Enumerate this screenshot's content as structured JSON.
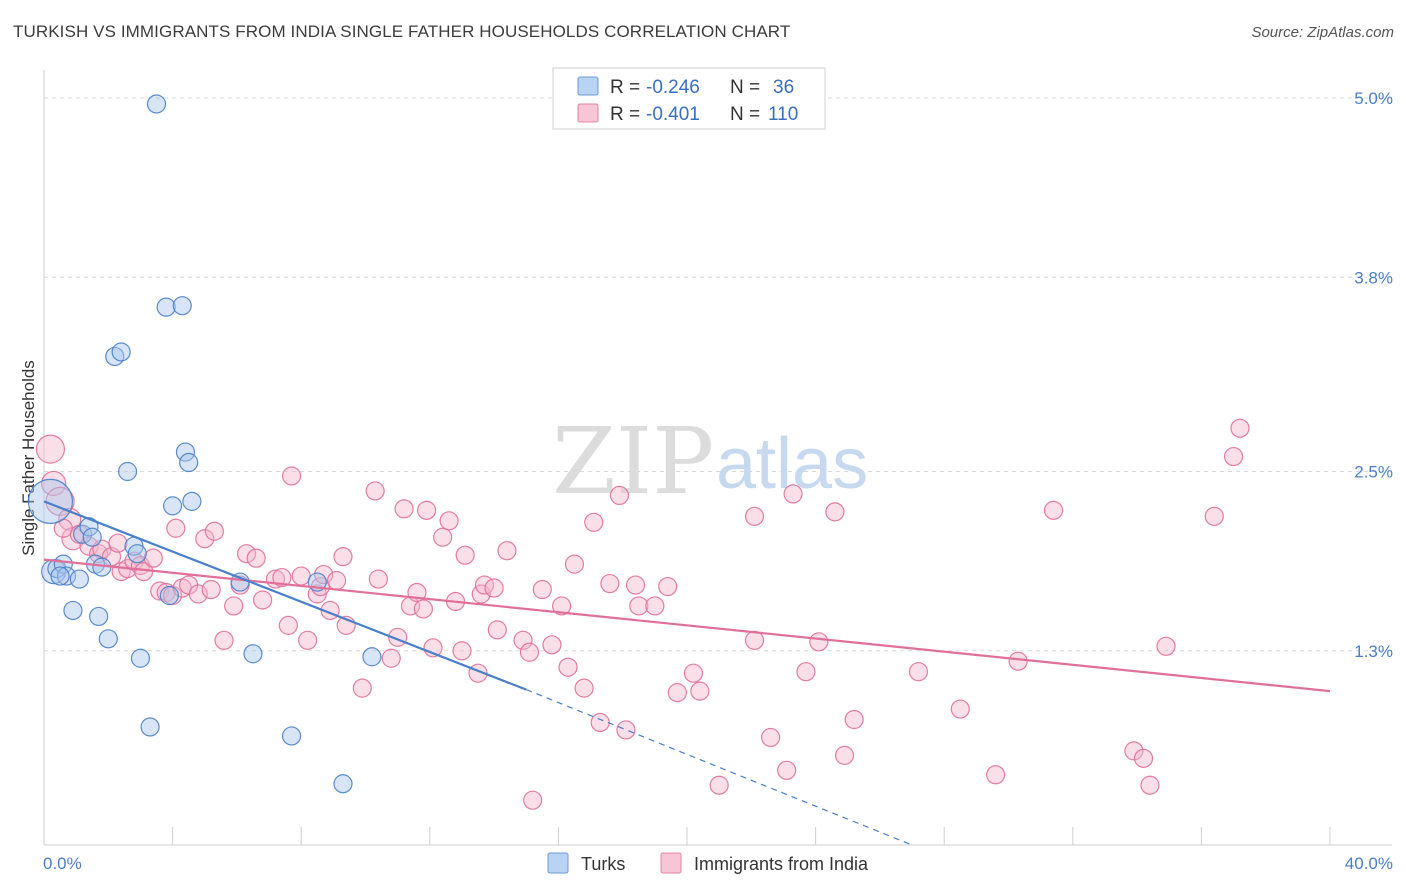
{
  "title": "TURKISH VS IMMIGRANTS FROM INDIA SINGLE FATHER HOUSEHOLDS CORRELATION CHART",
  "source": "Source: ZipAtlas.com",
  "watermark": {
    "zip": "ZIP",
    "atlas": "atlas"
  },
  "colors": {
    "blue": "#4a7fc9",
    "blue_fill": "#a8c6ec",
    "pink": "#e0709a",
    "pink_fill": "#f4b6cb",
    "grid": "#d9d9d9"
  },
  "legend": {
    "r_label": "R =",
    "n_label": "N =",
    "rows": [
      {
        "r": "-0.246",
        "n": "36"
      },
      {
        "r": "-0.401",
        "n": "110"
      }
    ]
  },
  "chart_data": {
    "type": "scatter",
    "title": "TURKISH VS IMMIGRANTS FROM INDIA SINGLE FATHER HOUSEHOLDS CORRELATION CHART",
    "xlabel": "",
    "ylabel": "Single Father Households",
    "xlim": [
      0,
      40
    ],
    "ylim": [
      0,
      5.2
    ],
    "x_tick_labels": [
      "0.0%",
      "40.0%"
    ],
    "y_ticks": [
      1.3,
      2.5,
      3.8,
      5.0
    ],
    "y_tick_labels": [
      "1.3%",
      "2.5%",
      "3.8%",
      "5.0%"
    ],
    "grid": true,
    "legend_position": "top-center",
    "series": [
      {
        "name": "Turks",
        "color": "#4a7fc9",
        "r": -0.246,
        "n": 36,
        "trend": {
          "x": [
            0,
            15
          ],
          "y": [
            2.3,
            1.04
          ]
        },
        "trend_dashed": {
          "x": [
            15,
            27
          ],
          "y": [
            1.04,
            0.0
          ]
        },
        "points": [
          {
            "x": 0.2,
            "y": 2.3,
            "s": 22
          },
          {
            "x": 0.3,
            "y": 1.83,
            "s": 12
          },
          {
            "x": 0.4,
            "y": 1.85,
            "s": 9
          },
          {
            "x": 0.6,
            "y": 1.88,
            "s": 9
          },
          {
            "x": 0.7,
            "y": 1.8,
            "s": 9
          },
          {
            "x": 0.9,
            "y": 1.57,
            "s": 9
          },
          {
            "x": 1.1,
            "y": 1.78,
            "s": 9
          },
          {
            "x": 1.2,
            "y": 2.08,
            "s": 9
          },
          {
            "x": 1.4,
            "y": 2.13,
            "s": 9
          },
          {
            "x": 1.5,
            "y": 2.06,
            "s": 9
          },
          {
            "x": 1.6,
            "y": 1.88,
            "s": 9
          },
          {
            "x": 1.7,
            "y": 1.53,
            "s": 9
          },
          {
            "x": 1.8,
            "y": 1.86,
            "s": 9
          },
          {
            "x": 2.0,
            "y": 1.38,
            "s": 9
          },
          {
            "x": 2.2,
            "y": 3.27,
            "s": 9
          },
          {
            "x": 2.4,
            "y": 3.3,
            "s": 9
          },
          {
            "x": 2.6,
            "y": 2.5,
            "s": 9
          },
          {
            "x": 2.8,
            "y": 2.0,
            "s": 9
          },
          {
            "x": 2.9,
            "y": 1.95,
            "s": 9
          },
          {
            "x": 3.0,
            "y": 1.25,
            "s": 9
          },
          {
            "x": 3.3,
            "y": 0.79,
            "s": 9
          },
          {
            "x": 3.5,
            "y": 4.96,
            "s": 9
          },
          {
            "x": 3.8,
            "y": 3.6,
            "s": 9
          },
          {
            "x": 3.9,
            "y": 1.67,
            "s": 9
          },
          {
            "x": 4.0,
            "y": 2.27,
            "s": 9
          },
          {
            "x": 4.3,
            "y": 3.61,
            "s": 9
          },
          {
            "x": 4.4,
            "y": 2.63,
            "s": 9
          },
          {
            "x": 4.5,
            "y": 2.56,
            "s": 9
          },
          {
            "x": 4.6,
            "y": 2.3,
            "s": 9
          },
          {
            "x": 6.1,
            "y": 1.76,
            "s": 9
          },
          {
            "x": 6.5,
            "y": 1.28,
            "s": 9
          },
          {
            "x": 7.7,
            "y": 0.73,
            "s": 9
          },
          {
            "x": 8.5,
            "y": 1.76,
            "s": 9
          },
          {
            "x": 9.3,
            "y": 0.41,
            "s": 9
          },
          {
            "x": 10.2,
            "y": 1.26,
            "s": 9
          },
          {
            "x": 0.5,
            "y": 1.8,
            "s": 9
          }
        ]
      },
      {
        "name": "Immigrants from India",
        "color": "#e0709a",
        "r": -0.401,
        "n": 110,
        "trend": {
          "x": [
            0,
            40
          ],
          "y": [
            1.91,
            1.03
          ]
        },
        "points": [
          {
            "x": 0.2,
            "y": 2.65,
            "s": 14
          },
          {
            "x": 0.3,
            "y": 2.42,
            "s": 12
          },
          {
            "x": 0.5,
            "y": 2.3,
            "s": 14
          },
          {
            "x": 0.8,
            "y": 2.18,
            "s": 11
          },
          {
            "x": 0.9,
            "y": 2.05,
            "s": 11
          },
          {
            "x": 1.1,
            "y": 2.08,
            "s": 9
          },
          {
            "x": 1.4,
            "y": 2.0,
            "s": 9
          },
          {
            "x": 1.7,
            "y": 1.95,
            "s": 9
          },
          {
            "x": 1.8,
            "y": 1.98,
            "s": 9
          },
          {
            "x": 2.1,
            "y": 1.93,
            "s": 9
          },
          {
            "x": 2.3,
            "y": 2.02,
            "s": 9
          },
          {
            "x": 2.4,
            "y": 1.83,
            "s": 9
          },
          {
            "x": 2.6,
            "y": 1.85,
            "s": 9
          },
          {
            "x": 2.8,
            "y": 1.9,
            "s": 9
          },
          {
            "x": 3.0,
            "y": 1.87,
            "s": 9
          },
          {
            "x": 3.1,
            "y": 1.83,
            "s": 9
          },
          {
            "x": 3.4,
            "y": 1.92,
            "s": 9
          },
          {
            "x": 3.6,
            "y": 1.7,
            "s": 9
          },
          {
            "x": 3.8,
            "y": 1.69,
            "s": 9
          },
          {
            "x": 4.0,
            "y": 1.67,
            "s": 9
          },
          {
            "x": 4.1,
            "y": 2.12,
            "s": 9
          },
          {
            "x": 4.3,
            "y": 1.72,
            "s": 9
          },
          {
            "x": 4.5,
            "y": 1.74,
            "s": 9
          },
          {
            "x": 4.8,
            "y": 1.68,
            "s": 9
          },
          {
            "x": 5.0,
            "y": 2.05,
            "s": 9
          },
          {
            "x": 5.2,
            "y": 1.71,
            "s": 9
          },
          {
            "x": 5.3,
            "y": 2.1,
            "s": 9
          },
          {
            "x": 5.6,
            "y": 1.37,
            "s": 9
          },
          {
            "x": 5.9,
            "y": 1.6,
            "s": 9
          },
          {
            "x": 6.1,
            "y": 1.74,
            "s": 9
          },
          {
            "x": 6.3,
            "y": 1.95,
            "s": 9
          },
          {
            "x": 6.6,
            "y": 1.92,
            "s": 9
          },
          {
            "x": 6.8,
            "y": 1.64,
            "s": 9
          },
          {
            "x": 7.2,
            "y": 1.78,
            "s": 9
          },
          {
            "x": 7.4,
            "y": 1.79,
            "s": 9
          },
          {
            "x": 7.6,
            "y": 1.47,
            "s": 9
          },
          {
            "x": 7.7,
            "y": 2.47,
            "s": 9
          },
          {
            "x": 8.0,
            "y": 1.8,
            "s": 9
          },
          {
            "x": 8.2,
            "y": 1.37,
            "s": 9
          },
          {
            "x": 8.5,
            "y": 1.68,
            "s": 9
          },
          {
            "x": 8.6,
            "y": 1.73,
            "s": 9
          },
          {
            "x": 8.7,
            "y": 1.81,
            "s": 9
          },
          {
            "x": 8.9,
            "y": 1.57,
            "s": 9
          },
          {
            "x": 9.1,
            "y": 1.77,
            "s": 9
          },
          {
            "x": 9.3,
            "y": 1.93,
            "s": 9
          },
          {
            "x": 9.4,
            "y": 1.47,
            "s": 9
          },
          {
            "x": 9.9,
            "y": 1.05,
            "s": 9
          },
          {
            "x": 10.3,
            "y": 2.37,
            "s": 9
          },
          {
            "x": 10.4,
            "y": 1.78,
            "s": 9
          },
          {
            "x": 10.8,
            "y": 1.25,
            "s": 9
          },
          {
            "x": 11.0,
            "y": 1.39,
            "s": 9
          },
          {
            "x": 11.2,
            "y": 2.25,
            "s": 9
          },
          {
            "x": 11.4,
            "y": 1.6,
            "s": 9
          },
          {
            "x": 11.6,
            "y": 1.69,
            "s": 9
          },
          {
            "x": 11.8,
            "y": 1.58,
            "s": 9
          },
          {
            "x": 11.9,
            "y": 2.24,
            "s": 9
          },
          {
            "x": 12.1,
            "y": 1.32,
            "s": 9
          },
          {
            "x": 12.4,
            "y": 2.06,
            "s": 9
          },
          {
            "x": 12.6,
            "y": 2.17,
            "s": 9
          },
          {
            "x": 12.8,
            "y": 1.63,
            "s": 9
          },
          {
            "x": 13.0,
            "y": 1.3,
            "s": 9
          },
          {
            "x": 13.1,
            "y": 1.94,
            "s": 9
          },
          {
            "x": 13.5,
            "y": 1.15,
            "s": 9
          },
          {
            "x": 13.6,
            "y": 1.68,
            "s": 9
          },
          {
            "x": 13.7,
            "y": 1.74,
            "s": 9
          },
          {
            "x": 14.0,
            "y": 1.72,
            "s": 9
          },
          {
            "x": 14.1,
            "y": 1.44,
            "s": 9
          },
          {
            "x": 14.4,
            "y": 1.97,
            "s": 9
          },
          {
            "x": 14.9,
            "y": 1.37,
            "s": 9
          },
          {
            "x": 15.1,
            "y": 1.29,
            "s": 9
          },
          {
            "x": 15.2,
            "y": 0.3,
            "s": 9
          },
          {
            "x": 15.5,
            "y": 1.71,
            "s": 9
          },
          {
            "x": 15.8,
            "y": 1.34,
            "s": 9
          },
          {
            "x": 16.1,
            "y": 1.6,
            "s": 9
          },
          {
            "x": 16.3,
            "y": 1.19,
            "s": 9
          },
          {
            "x": 16.5,
            "y": 1.88,
            "s": 9
          },
          {
            "x": 16.8,
            "y": 1.05,
            "s": 9
          },
          {
            "x": 17.1,
            "y": 2.16,
            "s": 9
          },
          {
            "x": 17.3,
            "y": 0.82,
            "s": 9
          },
          {
            "x": 17.6,
            "y": 1.75,
            "s": 9
          },
          {
            "x": 17.9,
            "y": 2.34,
            "s": 9
          },
          {
            "x": 18.1,
            "y": 0.77,
            "s": 9
          },
          {
            "x": 18.4,
            "y": 1.74,
            "s": 9
          },
          {
            "x": 18.5,
            "y": 1.6,
            "s": 9
          },
          {
            "x": 19.0,
            "y": 1.6,
            "s": 9
          },
          {
            "x": 19.4,
            "y": 1.73,
            "s": 9
          },
          {
            "x": 19.7,
            "y": 1.02,
            "s": 9
          },
          {
            "x": 20.2,
            "y": 1.15,
            "s": 9
          },
          {
            "x": 20.4,
            "y": 1.03,
            "s": 9
          },
          {
            "x": 21.0,
            "y": 0.4,
            "s": 9
          },
          {
            "x": 22.1,
            "y": 2.2,
            "s": 9
          },
          {
            "x": 22.1,
            "y": 1.37,
            "s": 9
          },
          {
            "x": 22.6,
            "y": 0.72,
            "s": 9
          },
          {
            "x": 23.1,
            "y": 0.5,
            "s": 9
          },
          {
            "x": 23.7,
            "y": 1.16,
            "s": 9
          },
          {
            "x": 24.1,
            "y": 1.36,
            "s": 9
          },
          {
            "x": 24.6,
            "y": 2.23,
            "s": 9
          },
          {
            "x": 24.9,
            "y": 0.6,
            "s": 9
          },
          {
            "x": 25.2,
            "y": 0.84,
            "s": 9
          },
          {
            "x": 27.2,
            "y": 1.16,
            "s": 9
          },
          {
            "x": 28.5,
            "y": 0.91,
            "s": 9
          },
          {
            "x": 29.6,
            "y": 0.47,
            "s": 9
          },
          {
            "x": 30.3,
            "y": 1.23,
            "s": 9
          },
          {
            "x": 31.4,
            "y": 2.24,
            "s": 9
          },
          {
            "x": 33.9,
            "y": 0.63,
            "s": 9
          },
          {
            "x": 34.2,
            "y": 0.58,
            "s": 9
          },
          {
            "x": 34.4,
            "y": 0.4,
            "s": 9
          },
          {
            "x": 34.9,
            "y": 1.33,
            "s": 9
          },
          {
            "x": 36.4,
            "y": 2.2,
            "s": 9
          },
          {
            "x": 37.0,
            "y": 2.6,
            "s": 9
          },
          {
            "x": 37.2,
            "y": 2.79,
            "s": 9
          },
          {
            "x": 23.3,
            "y": 2.35,
            "s": 9
          },
          {
            "x": 0.6,
            "y": 2.12,
            "s": 9
          }
        ]
      }
    ]
  }
}
